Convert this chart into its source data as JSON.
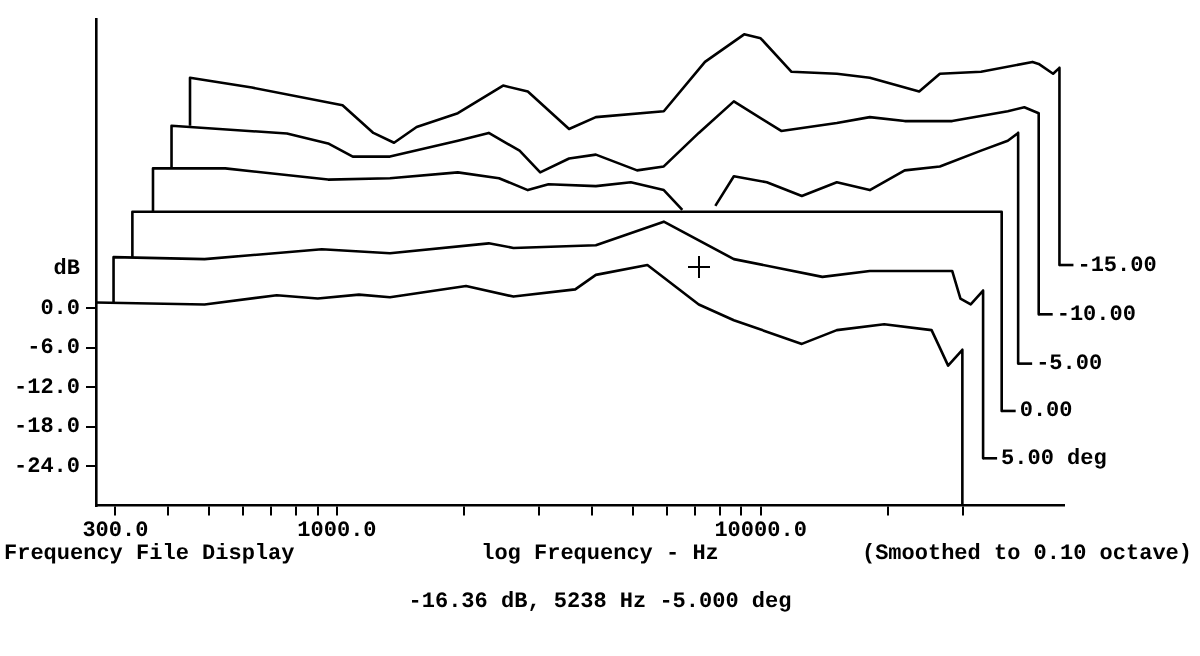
{
  "chart_data": {
    "type": "line",
    "ylabel": "dB",
    "xlabel": "log Frequency - Hz",
    "annotations": [
      "Frequency File Display",
      "(Smoothed to 0.10 octave)",
      "-16.36 dB, 5238 Hz -5.000 deg"
    ],
    "log": "x",
    "grid": false,
    "legend": "right",
    "marker": "none",
    "line_style": "solid",
    "xlim": [
      270,
      52000
    ],
    "ylim": [
      -30,
      44
    ],
    "xticks": [
      {
        "value": 300,
        "label": "300.0"
      },
      {
        "value": 400,
        "label": null
      },
      {
        "value": 500,
        "label": null
      },
      {
        "value": 600,
        "label": null
      },
      {
        "value": 700,
        "label": null
      },
      {
        "value": 800,
        "label": null
      },
      {
        "value": 900,
        "label": null
      },
      {
        "value": 1000,
        "label": "1000.0"
      },
      {
        "value": 2000,
        "label": null
      },
      {
        "value": 3000,
        "label": null
      },
      {
        "value": 4000,
        "label": null
      },
      {
        "value": 5000,
        "label": null
      },
      {
        "value": 6000,
        "label": null
      },
      {
        "value": 7000,
        "label": null
      },
      {
        "value": 8000,
        "label": null
      },
      {
        "value": 9000,
        "label": null
      },
      {
        "value": 10000,
        "label": "10000.0"
      },
      {
        "value": 20000,
        "label": null
      },
      {
        "value": 30000,
        "label": null
      }
    ],
    "yticks": [
      {
        "value": 0,
        "label": "0.0"
      },
      {
        "value": -6,
        "label": "-6.0"
      },
      {
        "value": -12,
        "label": "-12.0"
      },
      {
        "value": -18,
        "label": "-18.0"
      },
      {
        "value": -24,
        "label": "-24.0"
      }
    ],
    "series": [
      {
        "color": "#000000",
        "x": [
          270,
          487,
          721,
          901,
          1127,
          1334,
          2017,
          2610,
          3651,
          4084,
          5404,
          7146,
          8645,
          12510,
          15130,
          19570,
          25320,
          26490,
          27700,
          29930,
          29930
        ],
        "values": [
          0.9,
          0.6,
          2.0,
          1.5,
          2.1,
          1.7,
          3.4,
          1.8,
          2.9,
          5.1,
          6.6,
          0.6,
          -1.8,
          -5.4,
          -3.3,
          -2.4,
          -3.3,
          -6.0,
          -8.7,
          -6.3,
          -30
        ]
      },
      {
        "name": "5.00 deg",
        "color": "#000000",
        "x": [
          297,
          297,
          487,
          921,
          1334,
          2282,
          2610,
          4084,
          5908,
          8645,
          13990,
          18100,
          28320,
          29620,
          31320,
          33500,
          33500
        ],
        "values": [
          0.9,
          7.8,
          7.5,
          9.0,
          8.4,
          9.9,
          9.2,
          9.6,
          13.2,
          7.5,
          4.8,
          5.7,
          5.7,
          1.5,
          0.6,
          2.7,
          -22.8
        ]
      },
      {
        "name": "0.00",
        "color": "#000000",
        "x": [
          329,
          329,
          37060,
          37060
        ],
        "values": [
          7.8,
          14.7,
          14.7,
          -15.6
        ]
      },
      {
        "name": "-5.00",
        "color": "#000000",
        "x": [
          368,
          368,
          545,
          953,
          1334,
          1929,
          2413,
          2822,
          3157,
          4084,
          4940,
          5908,
          6534,
          7146,
          7818,
          8645,
          10342,
          12510,
          15130,
          18100,
          21880,
          26490,
          33130,
          38310,
          40530,
          40530
        ],
        "values": [
          14.7,
          21.3,
          21.3,
          19.6,
          19.8,
          20.7,
          19.8,
          18.0,
          18.9,
          18.6,
          19.2,
          18.0,
          15.0,
          null,
          15.6,
          20.1,
          19.2,
          17.1,
          19.2,
          18.0,
          21.0,
          21.6,
          24.0,
          25.5,
          26.7,
          -8.4
        ]
      },
      {
        "name": "-10.00",
        "color": "#000000",
        "x": [
          407,
          407,
          762,
          953,
          1090,
          1334,
          1929,
          2282,
          2698,
          3018,
          3531,
          4084,
          5110,
          5908,
          7146,
          8645,
          11186,
          15130,
          18100,
          21880,
          28320,
          38310,
          41910,
          45320,
          45320
        ],
        "values": [
          21.3,
          27.8,
          26.6,
          25.1,
          23.1,
          23.1,
          25.5,
          26.7,
          24.0,
          20.7,
          22.8,
          23.4,
          21.0,
          21.6,
          26.7,
          31.5,
          27.0,
          28.2,
          29.1,
          28.5,
          28.5,
          30.0,
          30.6,
          29.7,
          -0.9
        ]
      },
      {
        "name": "-15.00",
        "color": "#000000",
        "x": [
          450,
          450,
          630,
          1031,
          1219,
          1364,
          1542,
          1929,
          2467,
          2822,
          3531,
          4084,
          5908,
          7390,
          9143,
          10000,
          11828,
          15130,
          18100,
          23670,
          26490,
          33130,
          43830,
          45320,
          49010,
          50730,
          50730
        ],
        "values": [
          27.8,
          35.1,
          33.6,
          30.9,
          26.7,
          25.2,
          27.6,
          29.7,
          33.9,
          33.0,
          27.3,
          29.1,
          30.0,
          37.5,
          41.7,
          41.1,
          36.0,
          35.7,
          35.1,
          33.0,
          35.7,
          36.0,
          37.5,
          37.2,
          35.7,
          36.6,
          6.6
        ]
      }
    ]
  }
}
